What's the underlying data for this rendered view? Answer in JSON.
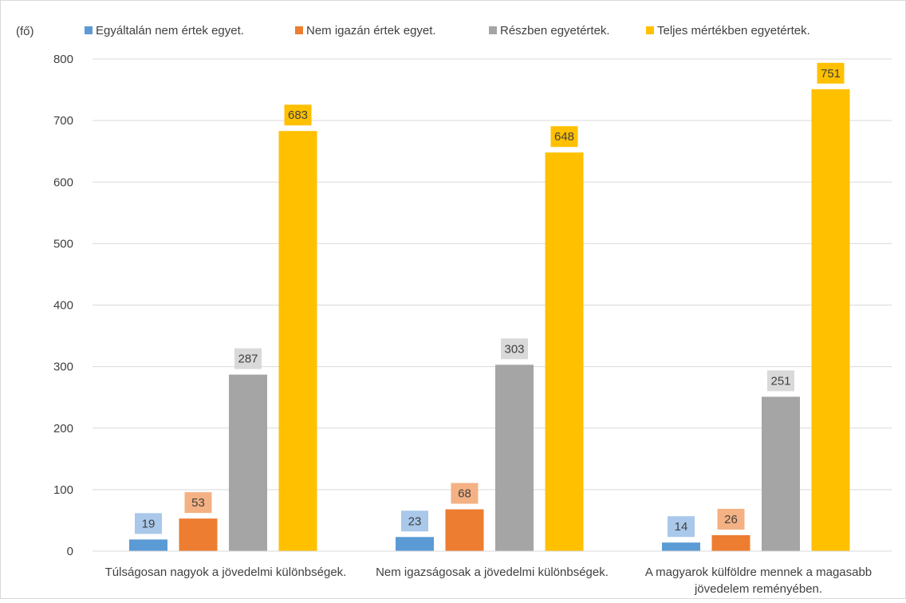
{
  "chart_data": {
    "type": "bar",
    "title": "",
    "ylabel": "(fő)",
    "xlabel": "",
    "ylim": [
      0,
      800
    ],
    "yticks": [
      0,
      100,
      200,
      300,
      400,
      500,
      600,
      700,
      800
    ],
    "grid": true,
    "legend_position": "top",
    "categories": [
      [
        "Túlságosan nagyok a jövedelmi különbségek."
      ],
      [
        "Nem igazságosak a jövedelmi különbségek."
      ],
      [
        "A magyarok külföldre mennek a magasabb",
        "jövedelem reményében."
      ]
    ],
    "series": [
      {
        "name": "Egyáltalán nem értek egyet.",
        "color": "#5B9BD5",
        "label_bg": "#A9C8EA",
        "values": [
          19,
          23,
          14
        ]
      },
      {
        "name": "Nem igazán értek egyet.",
        "color": "#ED7D31",
        "label_bg": "#F4B183",
        "values": [
          53,
          68,
          26
        ]
      },
      {
        "name": "Részben egyetértek.",
        "color": "#A5A5A5",
        "label_bg": "#D9D9D9",
        "values": [
          287,
          303,
          251
        ]
      },
      {
        "name": "Teljes mértékben egyetértek.",
        "color": "#FFC000",
        "label_bg": "#FFC000",
        "values": [
          683,
          648,
          751
        ]
      }
    ],
    "axis_color": "#D9D9D9",
    "text_color": "#404040"
  }
}
